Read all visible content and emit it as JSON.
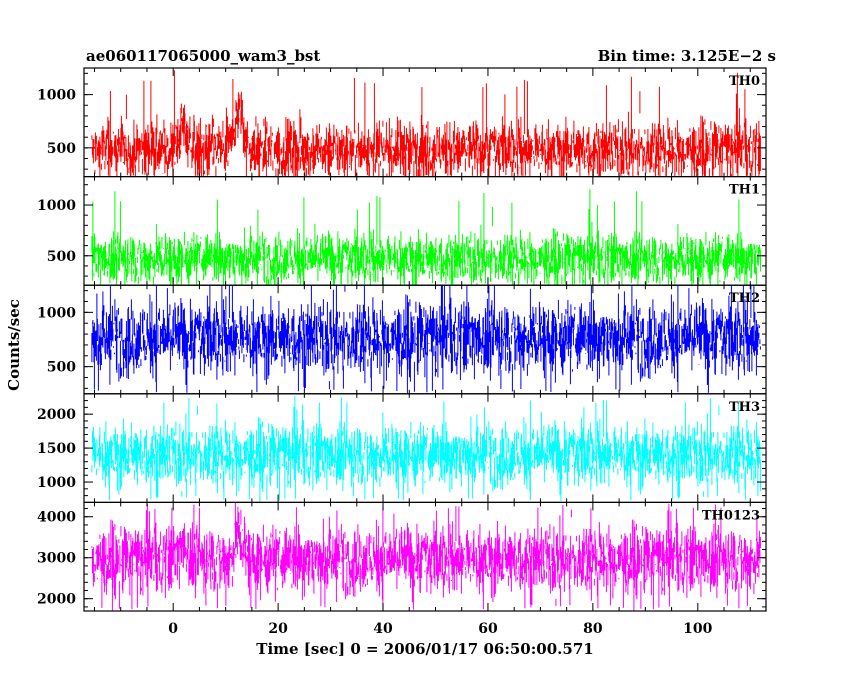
{
  "title_left": "ae060117065000_wam3_bst",
  "title_right": "Bin time: 3.125E−2 s",
  "ylabel": "Counts/sec",
  "xlabel": "Time [sec] 0 = 2006/01/17 06:50:00.571",
  "x_ticks": [
    0,
    20,
    40,
    60,
    80,
    100
  ],
  "chart_data": {
    "type": "line",
    "title": "ae060117065000_wam3_bst",
    "subtitle": "Bin time: 3.125E-2 s",
    "xlabel": "Time [sec] 0 = 2006/01/17 06:50:00.571",
    "ylabel": "Counts/sec",
    "bin_time_s": 0.03125,
    "xlim": [
      -17,
      113
    ],
    "data_x_range": [
      -15.5,
      112
    ],
    "grid": false,
    "legend": "none",
    "panels": [
      {
        "name": "TH0",
        "color": "#ff0000",
        "ylim": [
          230,
          1250
        ],
        "yticks": [
          500,
          1000
        ],
        "mean": 480,
        "low": 240,
        "high": 1000,
        "peak": 1250,
        "bursts": [
          {
            "x": 2,
            "level": 700
          },
          {
            "x": 12.5,
            "level": 850
          }
        ]
      },
      {
        "name": "TH1",
        "color": "#00ff00",
        "ylim": [
          210,
          1280
        ],
        "yticks": [
          500,
          1000
        ],
        "mean": 470,
        "low": 240,
        "high": 950,
        "peak": 1200,
        "bursts": []
      },
      {
        "name": "TH2",
        "color": "#0000ff",
        "ylim": [
          250,
          1250
        ],
        "yticks": [
          500,
          1000
        ],
        "mean": 760,
        "low": 300,
        "high": 1250,
        "peak": 1250,
        "bursts": []
      },
      {
        "name": "TH3",
        "color": "#00ffff",
        "ylim": [
          700,
          2300
        ],
        "yticks": [
          1000,
          1500,
          2000
        ],
        "mean": 1400,
        "low": 800,
        "high": 2100,
        "peak": 2300,
        "bursts": []
      },
      {
        "name": "TH0123",
        "color": "#ff00ff",
        "ylim": [
          1700,
          4350
        ],
        "yticks": [
          2000,
          3000,
          4000
        ],
        "mean": 2950,
        "low": 1850,
        "high": 4150,
        "peak": 4350,
        "bursts": [
          {
            "x": 2,
            "level": 3300
          },
          {
            "x": 12.5,
            "level": 3550
          }
        ]
      }
    ]
  }
}
